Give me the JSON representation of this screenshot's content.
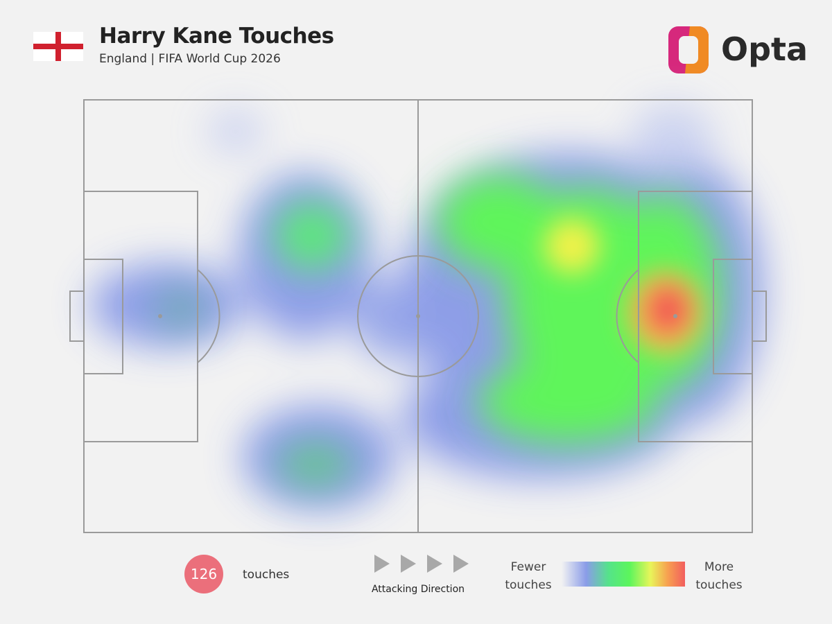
{
  "header": {
    "title": "Harry Kane Touches",
    "subtitle": "England | FIFA World Cup 2026",
    "brand": "Opta"
  },
  "footer": {
    "touches_count": 126,
    "touches_label": "touches",
    "direction_label": "Attacking Direction",
    "legend_low": "Fewer touches",
    "legend_high": "More touches"
  }
}
